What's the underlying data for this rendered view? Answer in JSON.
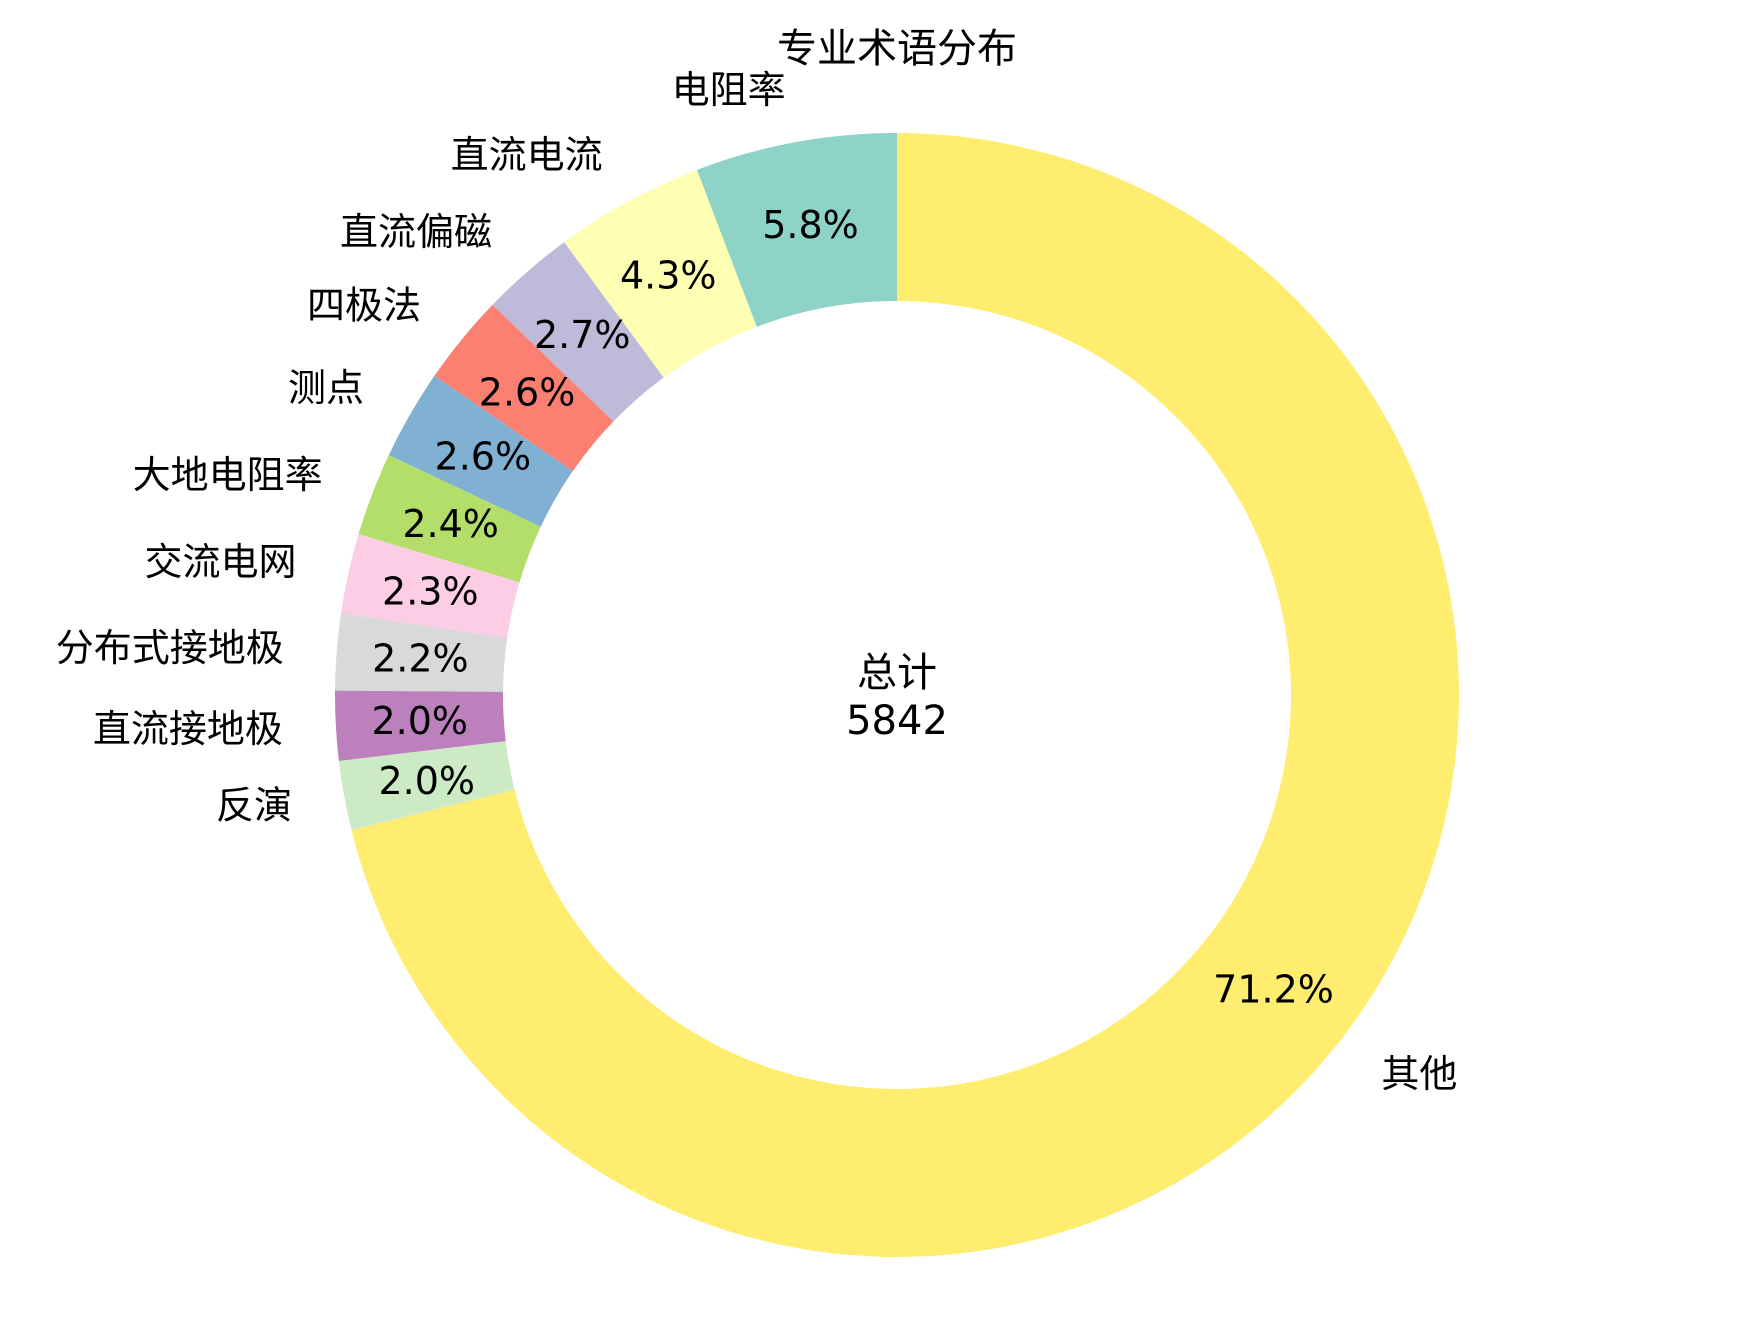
{
  "chart_data": {
    "type": "pie",
    "donut": true,
    "title": "专业术语分布",
    "center_label": "总计",
    "center_value": "5842",
    "categories": [
      "电阻率",
      "直流电流",
      "直流偏磁",
      "四极法",
      "测点",
      "大地电阻率",
      "交流电网",
      "分布式接地极",
      "直流接地极",
      "反演",
      "其他"
    ],
    "percent_labels": [
      "5.8%",
      "4.3%",
      "2.7%",
      "2.6%",
      "2.6%",
      "2.4%",
      "2.3%",
      "2.2%",
      "2.0%",
      "2.0%",
      "71.2%"
    ],
    "values": [
      5.8,
      4.3,
      2.7,
      2.6,
      2.6,
      2.4,
      2.3,
      2.2,
      2.0,
      2.0,
      71.2
    ],
    "colors": [
      "#8dd3c7",
      "#ffffb3",
      "#bebada",
      "#fb8072",
      "#80b1d3",
      "#b3de69",
      "#fccde5",
      "#d9d9d9",
      "#bc80bd",
      "#ccebc5",
      "#ffed6f"
    ],
    "start_angle_deg": 90,
    "direction": "counterclockwise"
  }
}
